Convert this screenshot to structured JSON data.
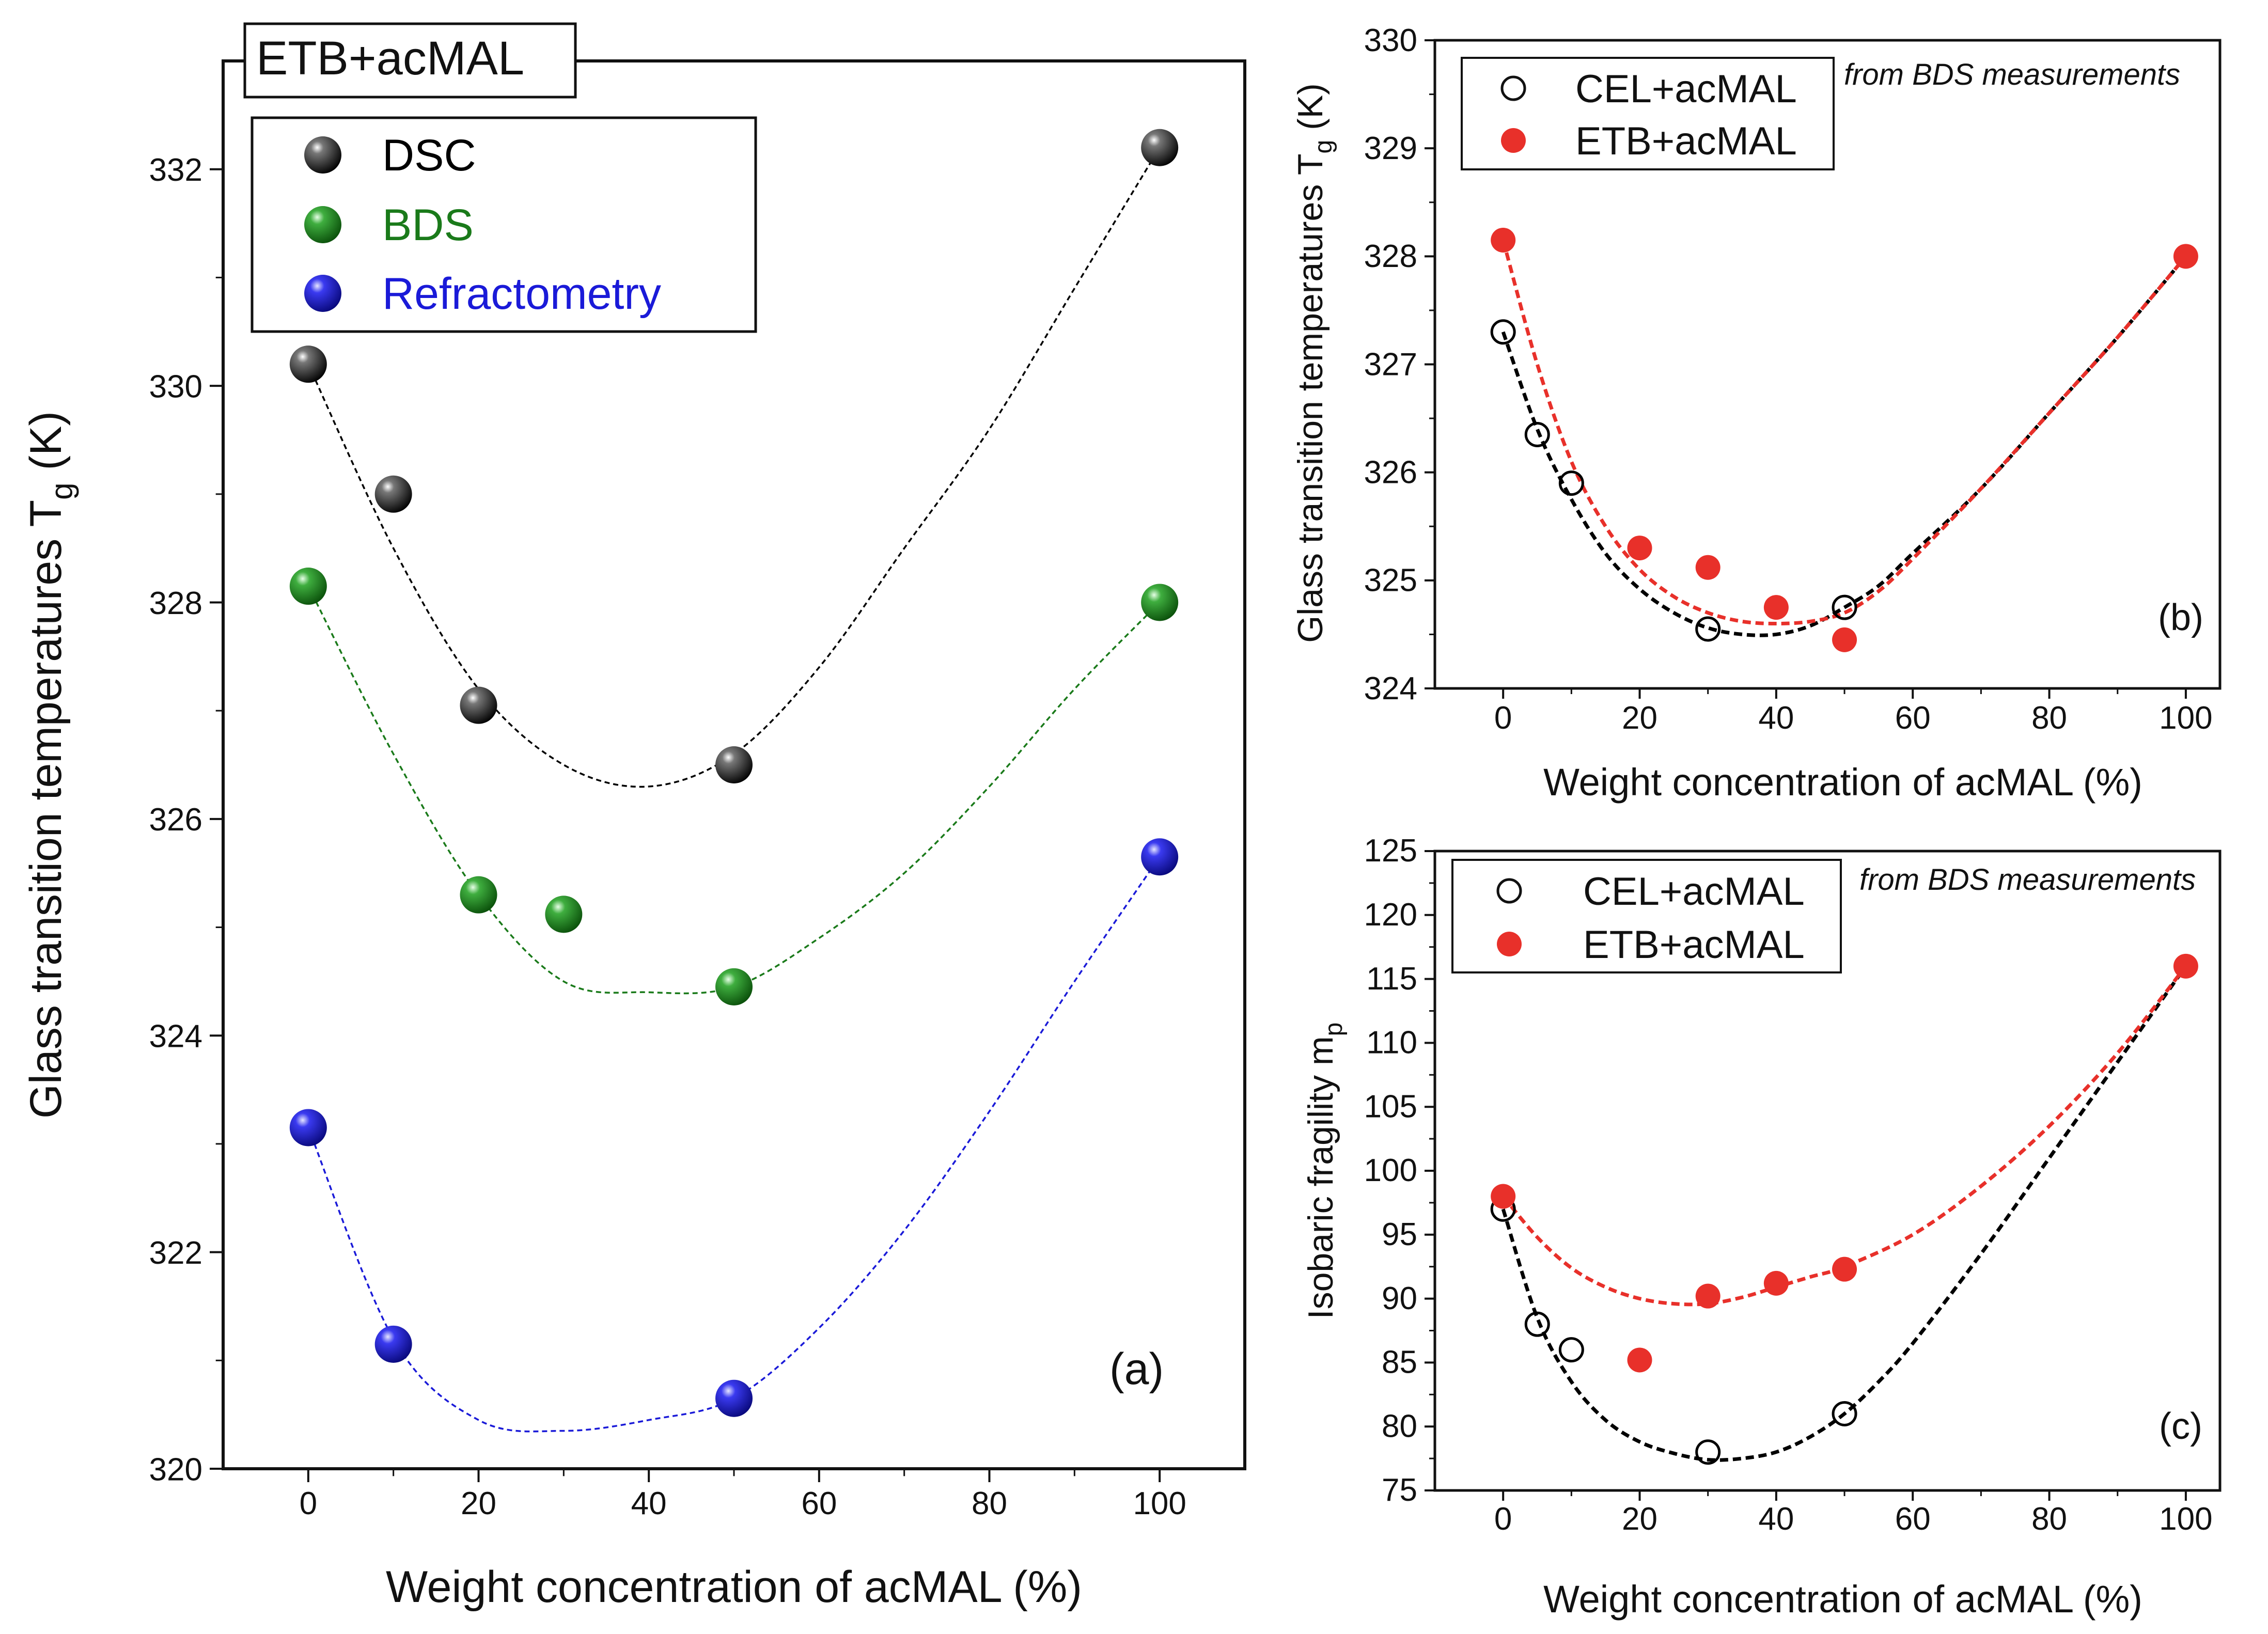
{
  "chart_data": [
    {
      "id": "a",
      "type": "scatter",
      "title": "ETB+acMAL",
      "panel_label": "(a)",
      "xlabel": "Weight concentration of acMAL (%)",
      "ylabel_main": "Glass transition temperatures T",
      "ylabel_sub": "g",
      "ylabel_unit": " (K)",
      "xlim": [
        -10,
        110
      ],
      "ylim": [
        320,
        333
      ],
      "xticks": [
        0,
        20,
        40,
        60,
        80,
        100
      ],
      "yticks": [
        320,
        322,
        324,
        326,
        328,
        330,
        332
      ],
      "legend_position": "top-left",
      "series": [
        {
          "name": "DSC",
          "color": "#000000",
          "x": [
            0,
            10,
            20,
            50,
            100
          ],
          "y": [
            330.2,
            329.0,
            327.05,
            326.5,
            332.2
          ],
          "fit": {
            "x": [
              0,
              10,
              20,
              30,
              40,
              50,
              60,
              70,
              80,
              90,
              100
            ],
            "y": [
              330.2,
              328.5,
              327.2,
              326.5,
              326.3,
              326.6,
              327.4,
              328.5,
              329.6,
              330.9,
              332.2
            ]
          }
        },
        {
          "name": "BDS",
          "color": "#1a7a1a",
          "x": [
            0,
            20,
            30,
            50,
            100
          ],
          "y": [
            328.15,
            325.3,
            325.12,
            324.45,
            328.0
          ],
          "fit": {
            "x": [
              0,
              10,
              20,
              30,
              40,
              50,
              60,
              70,
              80,
              90,
              100
            ],
            "y": [
              328.15,
              326.6,
              325.3,
              324.5,
              324.4,
              324.45,
              324.9,
              325.5,
              326.3,
              327.2,
              328.0
            ]
          }
        },
        {
          "name": "Refractometry",
          "color": "#1a1ad8",
          "x": [
            0,
            10,
            50,
            100
          ],
          "y": [
            323.15,
            321.15,
            320.65,
            325.65
          ],
          "fit": {
            "x": [
              0,
              10,
              20,
              30,
              40,
              50,
              60,
              70,
              80,
              90,
              100
            ],
            "y": [
              323.15,
              321.2,
              320.45,
              320.35,
              320.45,
              320.65,
              321.3,
              322.2,
              323.3,
              324.5,
              325.65
            ]
          }
        }
      ]
    },
    {
      "id": "b",
      "type": "scatter",
      "panel_label": "(b)",
      "annotation": "from BDS measurements",
      "xlabel": "Weight concentration of acMAL (%)",
      "ylabel_main": "Glass transition temperatures T",
      "ylabel_sub": "g",
      "ylabel_unit": " (K)",
      "xlim": [
        -10,
        105
      ],
      "ylim": [
        324,
        330
      ],
      "xticks": [
        0,
        20,
        40,
        60,
        80,
        100
      ],
      "yticks": [
        324,
        325,
        326,
        327,
        328,
        329,
        330
      ],
      "legend_position": "top-left",
      "series": [
        {
          "name": "CEL+acMAL",
          "color": "#000000",
          "marker": "open",
          "x": [
            0,
            5,
            10,
            30,
            50
          ],
          "y": [
            327.3,
            326.35,
            325.9,
            324.55,
            324.75
          ],
          "fit": {
            "x": [
              0,
              5,
              10,
              15,
              20,
              25,
              30,
              35,
              40,
              45,
              50,
              55,
              60,
              70,
              80,
              90,
              100
            ],
            "y": [
              327.3,
              326.4,
              325.75,
              325.25,
              324.92,
              324.7,
              324.56,
              324.5,
              324.5,
              324.58,
              324.75,
              324.95,
              325.25,
              325.85,
              326.55,
              327.25,
              328.0
            ]
          }
        },
        {
          "name": "ETB+acMAL",
          "color": "#e8302a",
          "marker": "filled",
          "x": [
            0,
            20,
            30,
            40,
            50,
            100
          ],
          "y": [
            328.15,
            325.3,
            325.12,
            324.75,
            324.45,
            328.0
          ],
          "fit": {
            "x": [
              0,
              5,
              10,
              15,
              20,
              25,
              30,
              35,
              40,
              45,
              50,
              55,
              60,
              70,
              80,
              90,
              100
            ],
            "y": [
              328.15,
              327.0,
              326.1,
              325.5,
              325.1,
              324.85,
              324.7,
              324.62,
              324.6,
              324.62,
              324.7,
              324.9,
              325.2,
              325.85,
              326.55,
              327.25,
              328.0
            ]
          }
        }
      ]
    },
    {
      "id": "c",
      "type": "scatter",
      "panel_label": "(c)",
      "annotation": "from BDS measurements",
      "xlabel": "Weight concentration of acMAL (%)",
      "ylabel_main": "Isobaric fragility m",
      "ylabel_sub": "p",
      "ylabel_unit": "",
      "xlim": [
        -10,
        105
      ],
      "ylim": [
        75,
        125
      ],
      "xticks": [
        0,
        20,
        40,
        60,
        80,
        100
      ],
      "yticks": [
        75,
        80,
        85,
        90,
        95,
        100,
        105,
        110,
        115,
        120,
        125
      ],
      "legend_position": "top-left",
      "series": [
        {
          "name": "CEL+acMAL",
          "color": "#000000",
          "marker": "open",
          "x": [
            0,
            5,
            10,
            30,
            50
          ],
          "y": [
            97,
            88,
            86,
            78,
            81
          ],
          "fit": {
            "x": [
              0,
              5,
              10,
              15,
              20,
              25,
              30,
              35,
              40,
              45,
              50,
              55,
              60,
              70,
              80,
              90,
              100
            ],
            "y": [
              97,
              88.5,
              83.5,
              80.5,
              78.8,
              77.9,
              77.4,
              77.5,
              78.0,
              79.2,
              81.0,
              83.5,
              86.5,
              93.5,
              101.0,
              108.5,
              116.0
            ]
          }
        },
        {
          "name": "ETB+acMAL",
          "color": "#e8302a",
          "marker": "filled",
          "x": [
            0,
            20,
            30,
            40,
            50,
            100
          ],
          "y": [
            98,
            85.2,
            90.2,
            91.2,
            92.3,
            116
          ],
          "fit": {
            "x": [
              0,
              5,
              10,
              15,
              20,
              25,
              30,
              35,
              40,
              45,
              50,
              60,
              70,
              80,
              90,
              100
            ],
            "y": [
              98,
              94.8,
              92.4,
              90.9,
              90.0,
              89.6,
              89.6,
              90.1,
              90.9,
              91.7,
              92.5,
              95.0,
              98.8,
              103.5,
              109.2,
              116.0
            ]
          }
        }
      ]
    }
  ]
}
